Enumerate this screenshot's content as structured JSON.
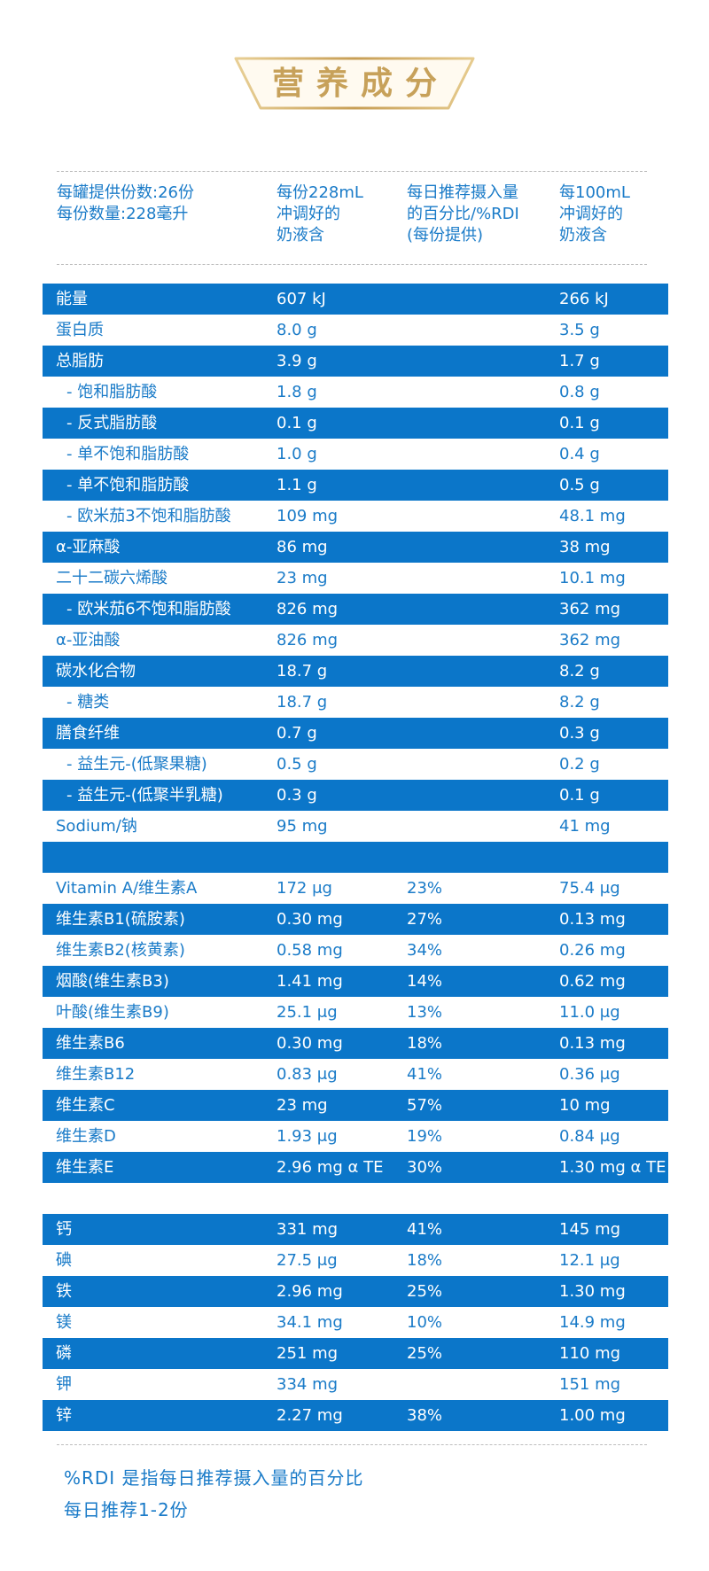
{
  "title": "营养成分",
  "colors": {
    "blue_band": "#0b76c9",
    "text_blue": "#1a7bc8",
    "gold": "#c7a15a"
  },
  "header": {
    "col1": [
      "每罐提供份数:26份",
      "每份数量:228毫升"
    ],
    "col2": [
      "每份228mL",
      "冲调好的",
      "奶液含"
    ],
    "col3": [
      "每日推荐摄入量",
      "的百分比/%RDI",
      "(每份提供)"
    ],
    "col4": [
      "每100mL",
      "冲调好的",
      "奶液含"
    ]
  },
  "section1": [
    {
      "name": "能量",
      "per_serving": "607 kJ",
      "rdi": "",
      "per100": "266 kJ",
      "indent": false
    },
    {
      "name": "蛋白质",
      "per_serving": "8.0 g",
      "rdi": "",
      "per100": "3.5 g",
      "indent": false
    },
    {
      "name": "总脂肪",
      "per_serving": "3.9 g",
      "rdi": "",
      "per100": "1.7 g",
      "indent": false
    },
    {
      "name": "- 饱和脂肪酸",
      "per_serving": "1.8 g",
      "rdi": "",
      "per100": "0.8 g",
      "indent": true
    },
    {
      "name": "- 反式脂肪酸",
      "per_serving": "0.1 g",
      "rdi": "",
      "per100": "0.1 g",
      "indent": true
    },
    {
      "name": "- 单不饱和脂肪酸",
      "per_serving": "1.0 g",
      "rdi": "",
      "per100": "0.4 g",
      "indent": true
    },
    {
      "name": "- 单不饱和脂肪酸",
      "per_serving": "1.1 g",
      "rdi": "",
      "per100": "0.5 g",
      "indent": true
    },
    {
      "name": "- 欧米茄3不饱和脂肪酸",
      "per_serving": "109 mg",
      "rdi": "",
      "per100": "48.1 mg",
      "indent": true
    },
    {
      "name": "α-亚麻酸",
      "per_serving": "86 mg",
      "rdi": "",
      "per100": "38 mg",
      "indent": false
    },
    {
      "name": "二十二碳六烯酸",
      "per_serving": "23 mg",
      "rdi": "",
      "per100": "10.1 mg",
      "indent": false
    },
    {
      "name": "- 欧米茄6不饱和脂肪酸",
      "per_serving": "826 mg",
      "rdi": "",
      "per100": "362 mg",
      "indent": true
    },
    {
      "name": "α-亚油酸",
      "per_serving": "826 mg",
      "rdi": "",
      "per100": "362 mg",
      "indent": false
    },
    {
      "name": "碳水化合物",
      "per_serving": "18.7 g",
      "rdi": "",
      "per100": "8.2 g",
      "indent": false
    },
    {
      "name": "- 糖类",
      "per_serving": "18.7 g",
      "rdi": "",
      "per100": "8.2 g",
      "indent": true
    },
    {
      "name": "膳食纤维",
      "per_serving": "0.7 g",
      "rdi": "",
      "per100": "0.3 g",
      "indent": false
    },
    {
      "name": "- 益生元-(低聚果糖)",
      "per_serving": "0.5 g",
      "rdi": "",
      "per100": "0.2 g",
      "indent": true
    },
    {
      "name": "- 益生元-(低聚半乳糖)",
      "per_serving": "0.3 g",
      "rdi": "",
      "per100": "0.1 g",
      "indent": true
    },
    {
      "name": "Sodium/钠",
      "per_serving": "95 mg",
      "rdi": "",
      "per100": "41 mg",
      "indent": false
    }
  ],
  "section2": [
    {
      "name": "Vitamin A/维生素A",
      "per_serving": "172 μg",
      "rdi": "23%",
      "per100": "75.4 μg"
    },
    {
      "name": "维生素B1(硫胺素)",
      "per_serving": "0.30 mg",
      "rdi": "27%",
      "per100": "0.13 mg"
    },
    {
      "name": "维生素B2(核黄素)",
      "per_serving": "0.58 mg",
      "rdi": "34%",
      "per100": "0.26 mg"
    },
    {
      "name": "烟酸(维生素B3)",
      "per_serving": "1.41 mg",
      "rdi": "14%",
      "per100": "0.62 mg"
    },
    {
      "name": "叶酸(维生素B9)",
      "per_serving": "25.1 μg",
      "rdi": "13%",
      "per100": "11.0 μg"
    },
    {
      "name": "维生素B6",
      "per_serving": "0.30 mg",
      "rdi": "18%",
      "per100": "0.13 mg"
    },
    {
      "name": "维生素B12",
      "per_serving": "0.83 μg",
      "rdi": "41%",
      "per100": "0.36 μg"
    },
    {
      "name": "维生素C",
      "per_serving": "23 mg",
      "rdi": "57%",
      "per100": "10 mg"
    },
    {
      "name": "维生素D",
      "per_serving": "1.93 μg",
      "rdi": "19%",
      "per100": "0.84 μg"
    },
    {
      "name": "维生素E",
      "per_serving": "2.96 mg α TE",
      "rdi": "30%",
      "per100": "1.30 mg α TE"
    }
  ],
  "section3": [
    {
      "name": "钙",
      "per_serving": "331 mg",
      "rdi": "41%",
      "per100": "145 mg"
    },
    {
      "name": "碘",
      "per_serving": "27.5 μg",
      "rdi": "18%",
      "per100": "12.1 μg"
    },
    {
      "name": "铁",
      "per_serving": "2.96 mg",
      "rdi": "25%",
      "per100": "1.30 mg"
    },
    {
      "name": "镁",
      "per_serving": "34.1 mg",
      "rdi": "10%",
      "per100": "14.9 mg"
    },
    {
      "name": "磷",
      "per_serving": "251 mg",
      "rdi": "25%",
      "per100": "110 mg"
    },
    {
      "name": "钾",
      "per_serving": "334 mg",
      "rdi": "",
      "per100": "151 mg"
    },
    {
      "name": "锌",
      "per_serving": "2.27 mg",
      "rdi": "38%",
      "per100": "1.00 mg"
    }
  ],
  "notes": [
    "%RDI 是指每日推荐摄入量的百分比",
    "每日推荐1-2份"
  ]
}
